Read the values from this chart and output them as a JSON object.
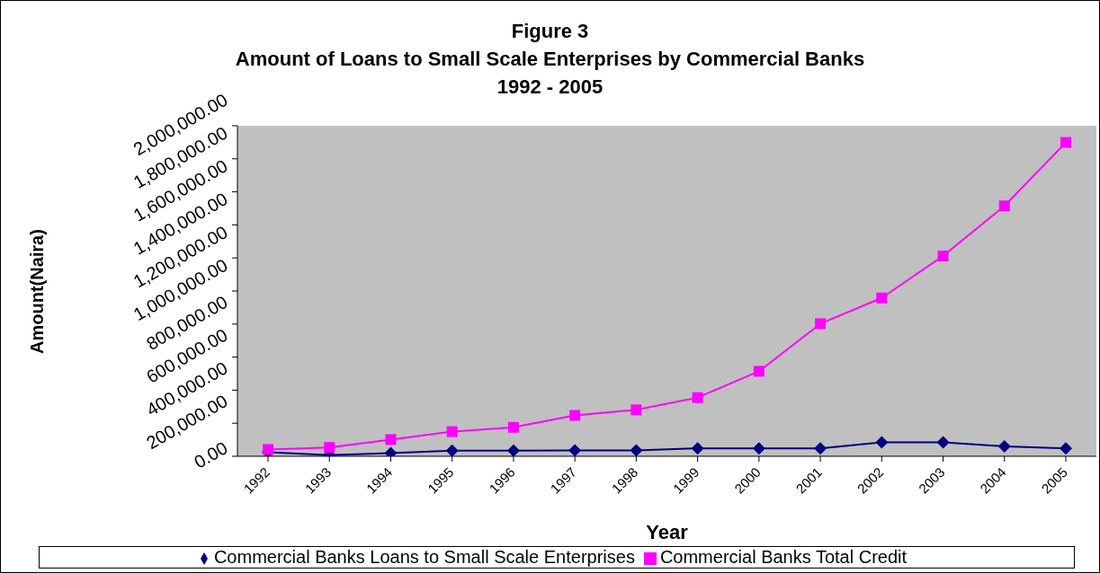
{
  "chart_data": {
    "type": "line",
    "title": "Figure 3\nAmount of Loans to Small Scale Enterprises by Commercial Banks\n1992 - 2005",
    "xlabel": "Year",
    "ylabel": "Amount(Naira)",
    "categories": [
      "1992",
      "1993",
      "1994",
      "1995",
      "1996",
      "1997",
      "1998",
      "1999",
      "2000",
      "2001",
      "2002",
      "2003",
      "2004",
      "2005"
    ],
    "series": [
      {
        "name": "Commercial Banks Loans to Small Scale Enterprises",
        "color": "#000080",
        "marker": "diamond",
        "values": [
          24000,
          7000,
          19000,
          34000,
          34000,
          36000,
          36000,
          48000,
          48000,
          48000,
          84000,
          84000,
          60000,
          48000
        ]
      },
      {
        "name": "Commercial Banks Total Credit",
        "color": "#ff00ff",
        "marker": "square",
        "values": [
          41000,
          53000,
          101000,
          149000,
          175000,
          247000,
          281000,
          355000,
          514000,
          802000,
          958000,
          1212000,
          1515000,
          1899000
        ]
      }
    ],
    "ylim": [
      0,
      2000000
    ],
    "yticks": [
      {
        "value": 0,
        "label": "0.00"
      },
      {
        "value": 200000,
        "label": "200,000.00"
      },
      {
        "value": 400000,
        "label": "400,000.00"
      },
      {
        "value": 600000,
        "label": "600,000.00"
      },
      {
        "value": 800000,
        "label": "800,000.00"
      },
      {
        "value": 1000000,
        "label": "1,000,000.00"
      },
      {
        "value": 1200000,
        "label": "1,200,000.00"
      },
      {
        "value": 1400000,
        "label": "1,400,000.00"
      },
      {
        "value": 1600000,
        "label": "1,600,000.00"
      },
      {
        "value": 1800000,
        "label": "1,800,000.00"
      },
      {
        "value": 2000000,
        "label": "2,000,000.00"
      }
    ],
    "grid": false,
    "legend": "bottom"
  }
}
